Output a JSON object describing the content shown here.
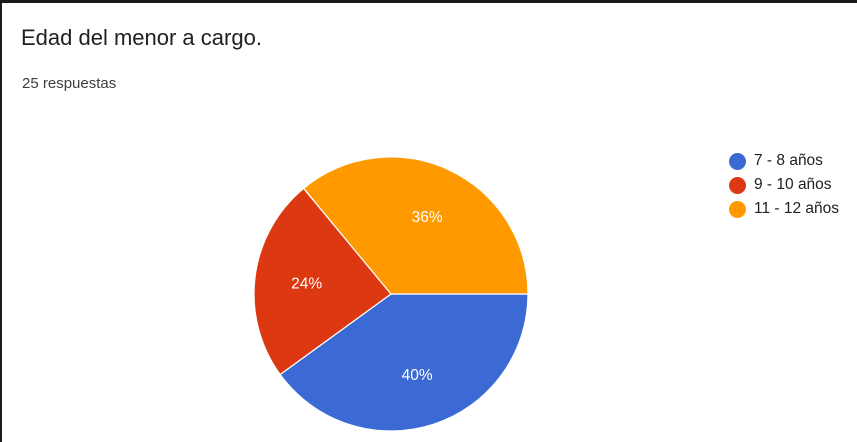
{
  "title": "Edad del menor a cargo.",
  "subtitle": "25 respuestas",
  "chart_data": {
    "type": "pie",
    "title": "Edad del menor a cargo.",
    "categories": [
      "7 - 8 años",
      "9 - 10 años",
      "11 - 12 años"
    ],
    "values": [
      40,
      24,
      36
    ],
    "value_labels": [
      "40%",
      "24%",
      "36%"
    ],
    "colors": [
      "#3b6ad4",
      "#dc3912",
      "#ff9900"
    ],
    "legend_position": "right"
  }
}
